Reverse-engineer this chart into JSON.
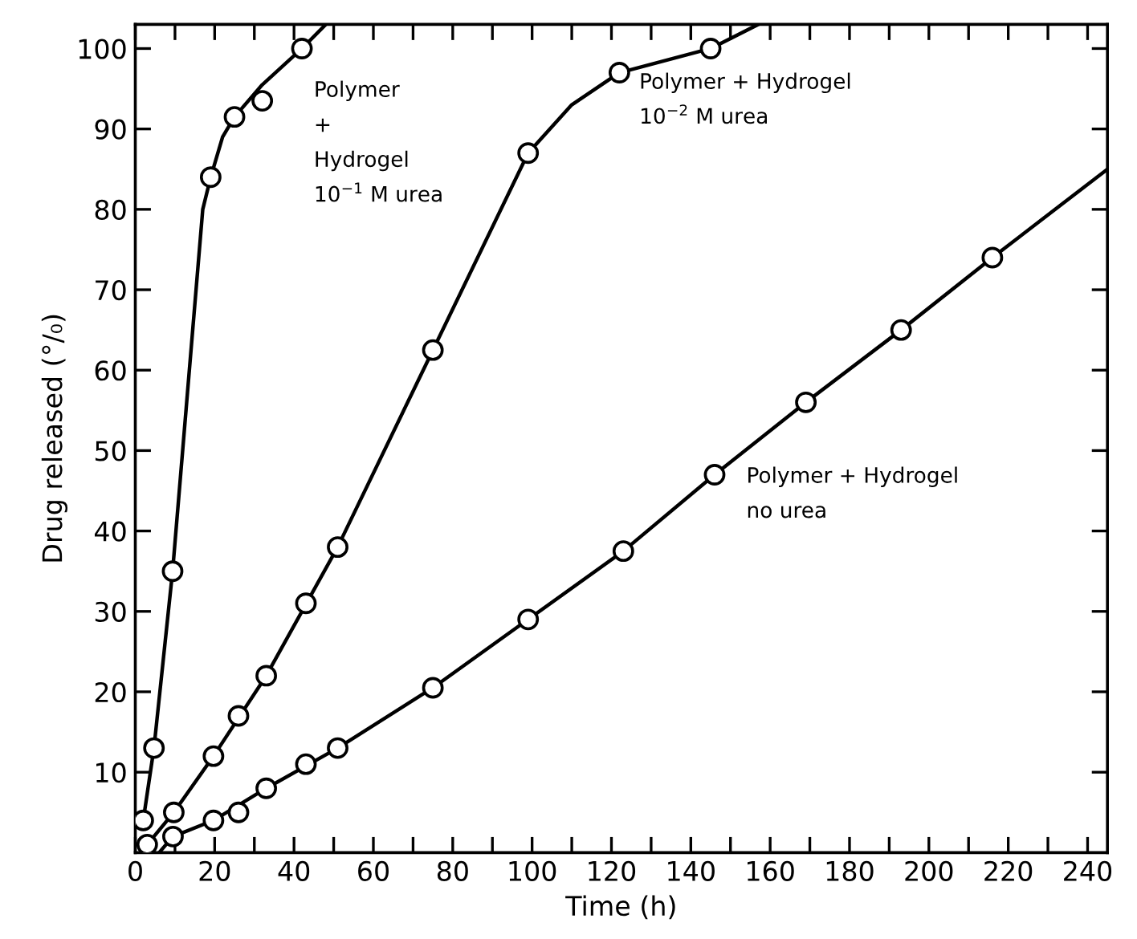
{
  "chart_data": {
    "type": "line",
    "xlabel": "Time (h)",
    "ylabel": "Drug released (°/₀)",
    "xlim": [
      0,
      245
    ],
    "ylim": [
      0,
      103
    ],
    "xticks": [
      0,
      {
        "value": 10,
        "label": null
      },
      20,
      {
        "value": 30,
        "label": null
      },
      40,
      {
        "value": 50,
        "label": null
      },
      60,
      {
        "value": 70,
        "label": null
      },
      80,
      {
        "value": 90,
        "label": null
      },
      100,
      {
        "value": 110,
        "label": null
      },
      120,
      {
        "value": 130,
        "label": null
      },
      140,
      {
        "value": 150,
        "label": null
      },
      160,
      {
        "value": 170,
        "label": null
      },
      180,
      {
        "value": 190,
        "label": null
      },
      200,
      {
        "value": 210,
        "label": null
      },
      220,
      {
        "value": 230,
        "label": null
      },
      240
    ],
    "yticks": [
      10,
      20,
      30,
      40,
      50,
      60,
      70,
      80,
      90,
      100
    ],
    "grid": false,
    "legend": false,
    "series": [
      {
        "name": "Polymer\n+\nHydrogel\n10$^{−1}$ M urea",
        "type": "scatter",
        "marker": "circle",
        "color": "#000000",
        "x": [
          2,
          4.7,
          9.4,
          19,
          25,
          32,
          42
        ],
        "values": [
          4,
          13,
          35,
          84,
          91.5,
          93.5,
          100
        ]
      },
      {
        "name": "Polymer + Hydrogel\n10$^{−2}$ M urea",
        "type": "scatter",
        "marker": "circle",
        "color": "#000000",
        "x": [
          3,
          9.7,
          19.7,
          26,
          33,
          43,
          51,
          75,
          99,
          122,
          145
        ],
        "values": [
          1,
          5,
          12,
          17,
          22,
          31,
          38,
          62.5,
          87,
          97,
          100
        ]
      },
      {
        "name": "Polymer + Hydrogel\nno urea",
        "type": "scatter",
        "marker": "circle",
        "color": "#000000",
        "x": [
          9.5,
          19.7,
          26,
          33,
          43,
          51,
          75,
          99,
          123,
          146,
          169,
          193,
          216
        ],
        "values": [
          2,
          4,
          5,
          8,
          11,
          13,
          20.5,
          29,
          37.5,
          47,
          56,
          65,
          74
        ]
      },
      {
        "line_style": "solid",
        "color": "#000000",
        "x": [
          2,
          4.7,
          9.4,
          17,
          19,
          22,
          25,
          32,
          42,
          48
        ],
        "values": [
          4,
          13,
          35,
          80,
          84,
          89,
          91.5,
          95.5,
          100,
          103
        ]
      },
      {
        "line_style": "solid",
        "color": "#000000",
        "x": [
          3,
          9.7,
          19.7,
          33,
          51,
          75,
          99,
          110,
          122,
          145,
          157
        ],
        "values": [
          1,
          5,
          12,
          22,
          38,
          62.5,
          87,
          93,
          97,
          100,
          103
        ]
      },
      {
        "line_style": "solid",
        "color": "#000000",
        "x": [
          6,
          9.5,
          19.7,
          33,
          51,
          75,
          99,
          123,
          146,
          169,
          193,
          216,
          245
        ],
        "values": [
          0,
          2,
          4,
          8,
          13,
          20.5,
          29,
          37.5,
          47,
          56,
          65,
          74,
          85
        ]
      }
    ]
  }
}
